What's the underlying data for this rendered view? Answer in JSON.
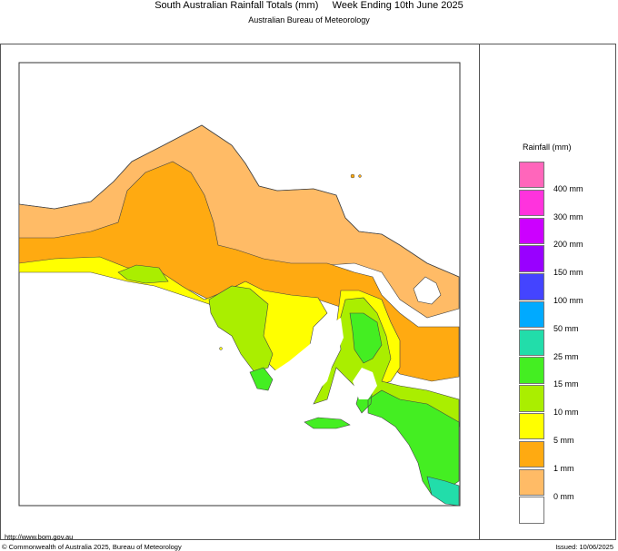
{
  "header": {
    "title": "South Australian Rainfall Totals (mm)     Week Ending 10th June 2025",
    "subtitle": "Australian Bureau of Meteorology"
  },
  "legend": {
    "title": "Rainfall (mm)",
    "items": [
      {
        "label": "400 mm",
        "color": "#ff66bb"
      },
      {
        "label": "300 mm",
        "color": "#ff33dd"
      },
      {
        "label": "200 mm",
        "color": "#cc00ff"
      },
      {
        "label": "150 mm",
        "color": "#9900ff"
      },
      {
        "label": "100 mm",
        "color": "#4444ff"
      },
      {
        "label": "50 mm",
        "color": "#00aaff"
      },
      {
        "label": "25 mm",
        "color": "#22ddaa"
      },
      {
        "label": "15 mm",
        "color": "#44ee22"
      },
      {
        "label": "10 mm",
        "color": "#aaee00"
      },
      {
        "label": "5 mm",
        "color": "#ffff00"
      },
      {
        "label": "1 mm",
        "color": "#ffaa11"
      },
      {
        "label": "0 mm",
        "color": "#ffbb66"
      },
      {
        "label": "",
        "color": "#ffffff"
      }
    ]
  },
  "map": {
    "colors": {
      "dry": "#ffbb66",
      "light": "#ffaa11",
      "yellow": "#ffff00",
      "lime": "#aaee00",
      "green": "#44ee22",
      "teal": "#22ddaa",
      "lake": "#ffffff",
      "coast": "#444444"
    }
  },
  "footer": {
    "url": "http://www.bom.gov.au",
    "copyright": "© Commonwealth of Australia 2025, Bureau of Meteorology",
    "issued": "Issued: 10/06/2025"
  }
}
